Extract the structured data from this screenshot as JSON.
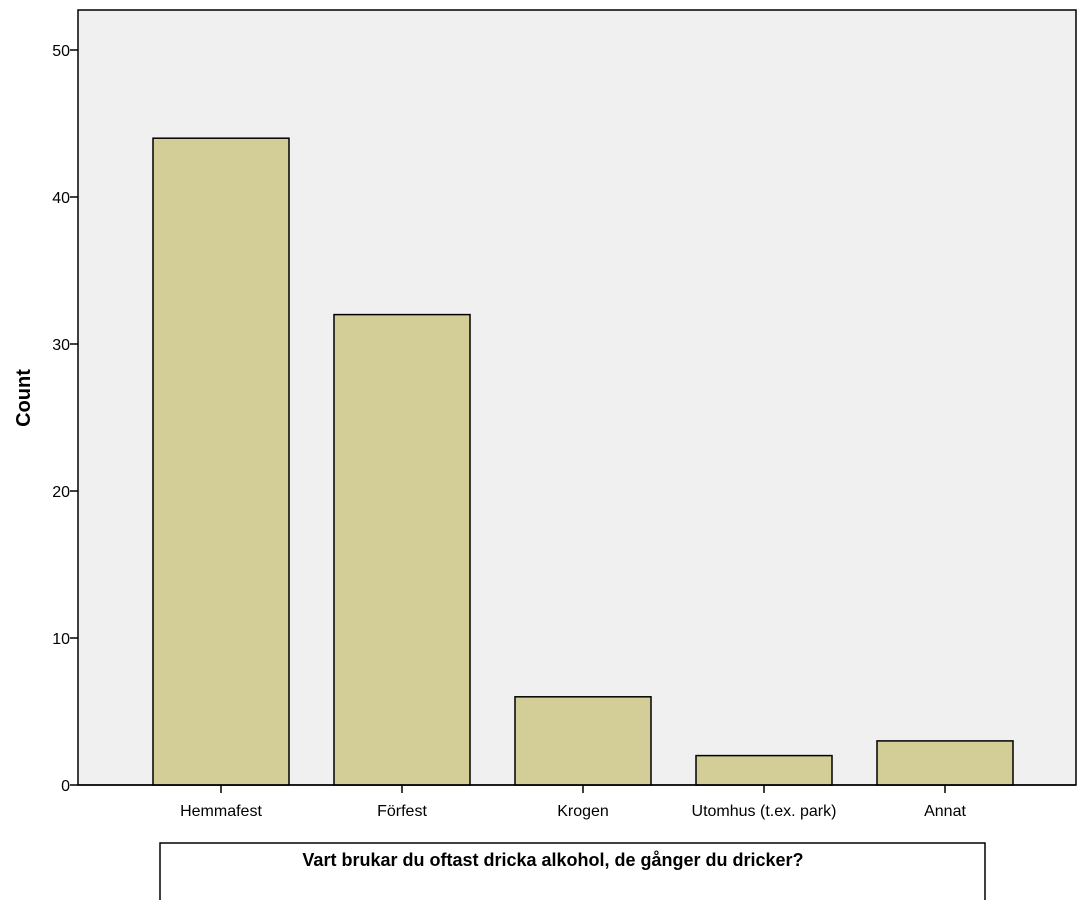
{
  "chart_data": {
    "type": "bar",
    "categories": [
      "Hemmafest",
      "Förfest",
      "Krogen",
      "Utomhus (t.ex. park)",
      "Annat"
    ],
    "values": [
      44,
      32,
      6,
      2,
      3
    ],
    "title": "",
    "xlabel": "Vart brukar du oftast dricka alkohol, de gånger du dricker?",
    "ylabel": "Count",
    "ylim": [
      0,
      52
    ],
    "yticks": [
      0,
      10,
      20,
      30,
      40,
      50
    ],
    "grid": false,
    "colors": {
      "bar_fill": "#d3ce98",
      "bar_stroke": "#000000",
      "plot_background": "#f0f0f0"
    }
  }
}
